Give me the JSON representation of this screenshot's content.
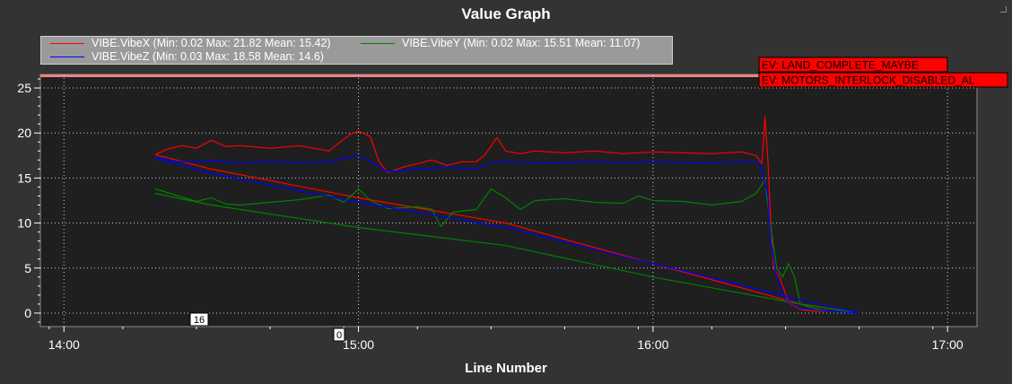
{
  "chart_data": {
    "type": "line",
    "title": "Value Graph",
    "xlabel": "Line Number",
    "ylabel": "",
    "xlim": [
      13.92,
      17.1
    ],
    "ylim": [
      -1.5,
      26.5
    ],
    "x_ticks": [
      {
        "v": 14.0,
        "label": "14:00"
      },
      {
        "v": 15.0,
        "label": "15:00"
      },
      {
        "v": 16.0,
        "label": "16:00"
      },
      {
        "v": 17.0,
        "label": "17:00"
      }
    ],
    "y_ticks": [
      0,
      5,
      10,
      15,
      20,
      25
    ],
    "grid": true,
    "legend_position": "top-left",
    "series": [
      {
        "name": "VIBE.VibeX (Min: 0.02 Max: 21.82 Mean: 15.42)",
        "color": "#ff0000",
        "points": [
          [
            14.31,
            17.6
          ],
          [
            14.35,
            18.2
          ],
          [
            14.4,
            18.6
          ],
          [
            14.45,
            18.3
          ],
          [
            14.5,
            19.2
          ],
          [
            14.55,
            18.5
          ],
          [
            14.6,
            18.6
          ],
          [
            14.7,
            18.3
          ],
          [
            14.8,
            18.6
          ],
          [
            14.9,
            18.0
          ],
          [
            14.93,
            18.8
          ],
          [
            14.97,
            19.8
          ],
          [
            15.0,
            20.2
          ],
          [
            15.04,
            19.6
          ],
          [
            15.07,
            16.8
          ],
          [
            15.1,
            15.6
          ],
          [
            15.15,
            16.2
          ],
          [
            15.2,
            16.6
          ],
          [
            15.25,
            17.0
          ],
          [
            15.3,
            16.4
          ],
          [
            15.35,
            16.8
          ],
          [
            15.4,
            16.8
          ],
          [
            15.43,
            17.6
          ],
          [
            15.47,
            19.5
          ],
          [
            15.5,
            18.0
          ],
          [
            15.55,
            17.7
          ],
          [
            15.6,
            18.0
          ],
          [
            15.7,
            17.8
          ],
          [
            15.8,
            18.0
          ],
          [
            15.9,
            17.7
          ],
          [
            16.0,
            17.9
          ],
          [
            16.1,
            17.8
          ],
          [
            16.2,
            17.7
          ],
          [
            16.3,
            17.9
          ],
          [
            16.35,
            17.5
          ],
          [
            16.37,
            16.6
          ],
          [
            16.38,
            21.8
          ],
          [
            16.39,
            17.0
          ],
          [
            16.4,
            10.0
          ],
          [
            16.41,
            5.0
          ],
          [
            16.43,
            4.0
          ],
          [
            16.46,
            1.2
          ],
          [
            16.5,
            0.4
          ],
          [
            16.55,
            0.2
          ],
          [
            16.6,
            0.2
          ],
          [
            16.7,
            0.0
          ],
          [
            16.5,
            1.0
          ],
          [
            16.0,
            5.5
          ],
          [
            15.5,
            10.0
          ],
          [
            15.0,
            12.8
          ],
          [
            14.5,
            16.0
          ],
          [
            14.31,
            17.6
          ]
        ]
      },
      {
        "name": "VIBE.VibeY (Min: 0.02 Max: 15.51 Mean: 11.07)",
        "color": "#008000",
        "points": [
          [
            14.31,
            13.8
          ],
          [
            14.35,
            13.4
          ],
          [
            14.4,
            12.9
          ],
          [
            14.45,
            12.4
          ],
          [
            14.5,
            12.8
          ],
          [
            14.55,
            12.1
          ],
          [
            14.6,
            12.0
          ],
          [
            14.7,
            12.3
          ],
          [
            14.8,
            12.6
          ],
          [
            14.9,
            13.1
          ],
          [
            14.95,
            12.3
          ],
          [
            15.0,
            13.8
          ],
          [
            15.04,
            12.5
          ],
          [
            15.1,
            11.6
          ],
          [
            15.2,
            11.8
          ],
          [
            15.25,
            11.5
          ],
          [
            15.28,
            9.6
          ],
          [
            15.32,
            11.2
          ],
          [
            15.4,
            11.5
          ],
          [
            15.45,
            13.8
          ],
          [
            15.5,
            12.8
          ],
          [
            15.55,
            11.5
          ],
          [
            15.6,
            12.5
          ],
          [
            15.7,
            12.7
          ],
          [
            15.8,
            12.3
          ],
          [
            15.9,
            12.2
          ],
          [
            15.95,
            13.0
          ],
          [
            16.0,
            12.5
          ],
          [
            16.1,
            12.4
          ],
          [
            16.2,
            12.0
          ],
          [
            16.3,
            12.4
          ],
          [
            16.35,
            13.3
          ],
          [
            16.38,
            14.8
          ],
          [
            16.39,
            12.0
          ],
          [
            16.4,
            9.5
          ],
          [
            16.42,
            5.0
          ],
          [
            16.44,
            4.0
          ],
          [
            16.46,
            5.5
          ],
          [
            16.48,
            4.0
          ],
          [
            16.5,
            1.0
          ],
          [
            16.55,
            0.5
          ],
          [
            16.6,
            0.2
          ],
          [
            16.7,
            0.0
          ],
          [
            16.5,
            1.0
          ],
          [
            16.0,
            4.0
          ],
          [
            15.5,
            7.5
          ],
          [
            15.0,
            9.5
          ],
          [
            14.5,
            12.0
          ],
          [
            14.31,
            13.3
          ]
        ]
      },
      {
        "name": "VIBE.VibeZ (Min: 0.03 Max: 18.58 Mean: 14.6)",
        "color": "#0000ff",
        "points": [
          [
            14.31,
            17.2
          ],
          [
            14.4,
            16.8
          ],
          [
            14.5,
            16.9
          ],
          [
            14.6,
            16.7
          ],
          [
            14.7,
            16.8
          ],
          [
            14.8,
            16.7
          ],
          [
            14.9,
            16.8
          ],
          [
            15.0,
            17.5
          ],
          [
            15.04,
            16.8
          ],
          [
            15.1,
            15.7
          ],
          [
            15.2,
            16.0
          ],
          [
            15.3,
            16.2
          ],
          [
            15.4,
            16.0
          ],
          [
            15.45,
            16.7
          ],
          [
            15.5,
            16.8
          ],
          [
            15.6,
            16.7
          ],
          [
            15.7,
            16.7
          ],
          [
            15.8,
            16.8
          ],
          [
            15.9,
            16.7
          ],
          [
            16.0,
            16.8
          ],
          [
            16.1,
            16.7
          ],
          [
            16.2,
            16.7
          ],
          [
            16.3,
            16.8
          ],
          [
            16.36,
            16.8
          ],
          [
            16.38,
            14.5
          ],
          [
            16.39,
            13.0
          ],
          [
            16.4,
            8.0
          ],
          [
            16.42,
            4.0
          ],
          [
            16.45,
            1.5
          ],
          [
            16.5,
            0.5
          ],
          [
            16.6,
            0.2
          ],
          [
            16.7,
            0.0
          ],
          [
            16.5,
            1.5
          ],
          [
            16.0,
            5.5
          ],
          [
            15.5,
            9.5
          ],
          [
            15.0,
            12.3
          ],
          [
            14.5,
            15.5
          ],
          [
            14.31,
            17.2
          ]
        ]
      }
    ],
    "event_labels": [
      {
        "text": "EV: LAND_COMPLETE_MAYBE"
      },
      {
        "text": "EV: MOTORS_INTERLOCK_DISABLED_AL"
      }
    ],
    "markers": [
      {
        "text": "16"
      },
      {
        "text": "0"
      }
    ]
  }
}
